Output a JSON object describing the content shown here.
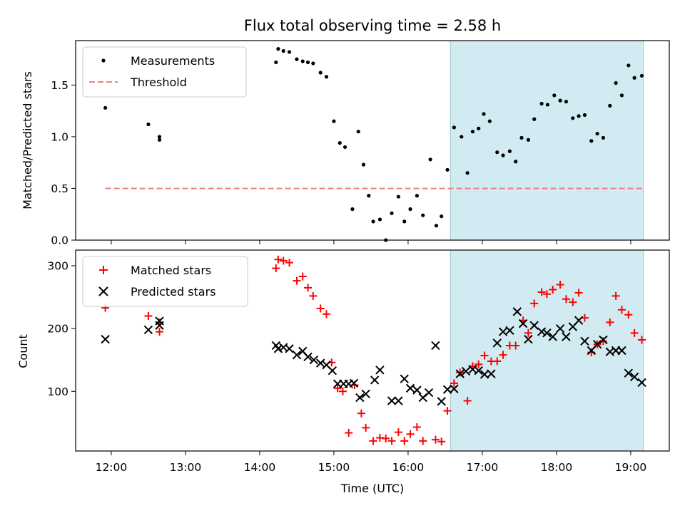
{
  "chart_data": {
    "title": "Flux total observing time = 2.58 h",
    "xlabel": "Time (UTC)",
    "x_tick_labels": [
      "12:00",
      "13:00",
      "14:00",
      "15:00",
      "16:00",
      "17:00",
      "18:00",
      "19:00"
    ],
    "x_range_hours": [
      11.52,
      19.52
    ],
    "shaded_interval_hours": [
      16.57,
      19.17
    ],
    "shade_color": "#add8e6",
    "panels": [
      {
        "type": "scatter",
        "ylabel": "Matched/Predicted stars",
        "ylim": [
          0,
          1.93
        ],
        "y_ticks": [
          0.0,
          0.5,
          1.0,
          1.5
        ],
        "y_tick_labels": [
          "0.0",
          "0.5",
          "1.0",
          "1.5"
        ],
        "legend_location": "upper left",
        "threshold": {
          "name": "Threshold",
          "value": 0.5,
          "x_range_hours": [
            11.92,
            19.18
          ],
          "color": "#f08080",
          "style": "dashed"
        },
        "series": [
          {
            "name": "Measurements",
            "color": "#000000",
            "marker": "dot",
            "points": [
              [
                11.92,
                1.28
              ],
              [
                12.5,
                1.12
              ],
              [
                12.65,
                1.0
              ],
              [
                12.65,
                0.97
              ],
              [
                14.22,
                1.72
              ],
              [
                14.25,
                1.85
              ],
              [
                14.32,
                1.83
              ],
              [
                14.4,
                1.82
              ],
              [
                14.5,
                1.75
              ],
              [
                14.58,
                1.73
              ],
              [
                14.65,
                1.72
              ],
              [
                14.72,
                1.71
              ],
              [
                14.82,
                1.62
              ],
              [
                14.9,
                1.58
              ],
              [
                15.0,
                1.15
              ],
              [
                15.08,
                0.94
              ],
              [
                15.15,
                0.9
              ],
              [
                15.25,
                0.3
              ],
              [
                15.33,
                1.05
              ],
              [
                15.4,
                0.73
              ],
              [
                15.47,
                0.43
              ],
              [
                15.53,
                0.18
              ],
              [
                15.62,
                0.2
              ],
              [
                15.7,
                0.0
              ],
              [
                15.78,
                0.26
              ],
              [
                15.87,
                0.42
              ],
              [
                15.95,
                0.18
              ],
              [
                16.03,
                0.3
              ],
              [
                16.12,
                0.43
              ],
              [
                16.2,
                0.24
              ],
              [
                16.3,
                0.78
              ],
              [
                16.38,
                0.14
              ],
              [
                16.45,
                0.23
              ],
              [
                16.53,
                0.68
              ],
              [
                16.62,
                1.09
              ],
              [
                16.72,
                1.0
              ],
              [
                16.8,
                0.65
              ],
              [
                16.87,
                1.05
              ],
              [
                16.95,
                1.08
              ],
              [
                17.02,
                1.22
              ],
              [
                17.1,
                1.15
              ],
              [
                17.2,
                0.85
              ],
              [
                17.28,
                0.82
              ],
              [
                17.37,
                0.86
              ],
              [
                17.45,
                0.76
              ],
              [
                17.53,
                0.99
              ],
              [
                17.62,
                0.97
              ],
              [
                17.7,
                1.17
              ],
              [
                17.8,
                1.32
              ],
              [
                17.88,
                1.31
              ],
              [
                17.97,
                1.4
              ],
              [
                18.05,
                1.35
              ],
              [
                18.13,
                1.34
              ],
              [
                18.22,
                1.18
              ],
              [
                18.3,
                1.2
              ],
              [
                18.38,
                1.21
              ],
              [
                18.47,
                0.96
              ],
              [
                18.55,
                1.03
              ],
              [
                18.63,
                0.99
              ],
              [
                18.72,
                1.3
              ],
              [
                18.8,
                1.52
              ],
              [
                18.88,
                1.4
              ],
              [
                18.97,
                1.69
              ],
              [
                19.05,
                1.57
              ],
              [
                19.15,
                1.59
              ]
            ]
          }
        ]
      },
      {
        "type": "scatter",
        "ylabel": "Count",
        "ylim": [
          5,
          325
        ],
        "y_ticks": [
          100,
          200,
          300
        ],
        "y_tick_labels": [
          "100",
          "200",
          "300"
        ],
        "legend_location": "upper left",
        "series": [
          {
            "name": "Matched stars",
            "color": "#ff0000",
            "marker": "plus",
            "points": [
              [
                11.92,
                233
              ],
              [
                12.5,
                220
              ],
              [
                12.65,
                195
              ],
              [
                12.65,
                210
              ],
              [
                14.22,
                296
              ],
              [
                14.25,
                310
              ],
              [
                14.32,
                308
              ],
              [
                14.4,
                305
              ],
              [
                14.5,
                276
              ],
              [
                14.58,
                283
              ],
              [
                14.65,
                265
              ],
              [
                14.72,
                252
              ],
              [
                14.82,
                232
              ],
              [
                14.9,
                223
              ],
              [
                14.97,
                146
              ],
              [
                15.05,
                105
              ],
              [
                15.12,
                100
              ],
              [
                15.2,
                34
              ],
              [
                15.28,
                110
              ],
              [
                15.37,
                65
              ],
              [
                15.43,
                42
              ],
              [
                15.53,
                21
              ],
              [
                15.62,
                26
              ],
              [
                15.7,
                25
              ],
              [
                15.78,
                21
              ],
              [
                15.87,
                35
              ],
              [
                15.95,
                21
              ],
              [
                16.03,
                32
              ],
              [
                16.12,
                43
              ],
              [
                16.2,
                21
              ],
              [
                16.37,
                23
              ],
              [
                16.45,
                20
              ],
              [
                16.53,
                69
              ],
              [
                16.62,
                113
              ],
              [
                16.7,
                130
              ],
              [
                16.8,
                85
              ],
              [
                16.87,
                140
              ],
              [
                16.95,
                143
              ],
              [
                17.03,
                157
              ],
              [
                17.12,
                148
              ],
              [
                17.2,
                148
              ],
              [
                17.28,
                158
              ],
              [
                17.37,
                173
              ],
              [
                17.45,
                173
              ],
              [
                17.55,
                213
              ],
              [
                17.62,
                193
              ],
              [
                17.7,
                240
              ],
              [
                17.8,
                258
              ],
              [
                17.87,
                255
              ],
              [
                17.95,
                262
              ],
              [
                18.05,
                270
              ],
              [
                18.13,
                247
              ],
              [
                18.22,
                242
              ],
              [
                18.3,
                257
              ],
              [
                18.38,
                217
              ],
              [
                18.47,
                162
              ],
              [
                18.55,
                175
              ],
              [
                18.63,
                180
              ],
              [
                18.72,
                210
              ],
              [
                18.8,
                252
              ],
              [
                18.88,
                230
              ],
              [
                18.97,
                222
              ],
              [
                19.05,
                193
              ],
              [
                19.15,
                182
              ]
            ]
          },
          {
            "name": "Predicted stars",
            "color": "#000000",
            "marker": "x",
            "points": [
              [
                11.92,
                183
              ],
              [
                12.5,
                198
              ],
              [
                12.65,
                205
              ],
              [
                12.65,
                212
              ],
              [
                14.22,
                173
              ],
              [
                14.25,
                168
              ],
              [
                14.32,
                170
              ],
              [
                14.4,
                168
              ],
              [
                14.5,
                158
              ],
              [
                14.58,
                164
              ],
              [
                14.65,
                155
              ],
              [
                14.73,
                150
              ],
              [
                14.82,
                145
              ],
              [
                14.9,
                142
              ],
              [
                14.98,
                133
              ],
              [
                15.05,
                112
              ],
              [
                15.13,
                112
              ],
              [
                15.2,
                112
              ],
              [
                15.27,
                113
              ],
              [
                15.35,
                90
              ],
              [
                15.43,
                96
              ],
              [
                15.55,
                118
              ],
              [
                15.62,
                134
              ],
              [
                15.78,
                85
              ],
              [
                15.87,
                85
              ],
              [
                15.95,
                120
              ],
              [
                16.03,
                105
              ],
              [
                16.12,
                102
              ],
              [
                16.2,
                90
              ],
              [
                16.28,
                98
              ],
              [
                16.37,
                173
              ],
              [
                16.45,
                84
              ],
              [
                16.53,
                103
              ],
              [
                16.62,
                104
              ],
              [
                16.7,
                128
              ],
              [
                16.78,
                132
              ],
              [
                16.87,
                135
              ],
              [
                16.95,
                133
              ],
              [
                17.03,
                127
              ],
              [
                17.12,
                128
              ],
              [
                17.2,
                177
              ],
              [
                17.28,
                195
              ],
              [
                17.37,
                197
              ],
              [
                17.47,
                227
              ],
              [
                17.55,
                208
              ],
              [
                17.62,
                183
              ],
              [
                17.7,
                205
              ],
              [
                17.8,
                195
              ],
              [
                17.87,
                193
              ],
              [
                17.95,
                187
              ],
              [
                18.05,
                200
              ],
              [
                18.13,
                187
              ],
              [
                18.22,
                203
              ],
              [
                18.3,
                213
              ],
              [
                18.38,
                180
              ],
              [
                18.47,
                165
              ],
              [
                18.55,
                175
              ],
              [
                18.63,
                182
              ],
              [
                18.72,
                163
              ],
              [
                18.8,
                165
              ],
              [
                18.88,
                165
              ],
              [
                18.97,
                129
              ],
              [
                19.05,
                123
              ],
              [
                19.15,
                114
              ]
            ]
          }
        ]
      }
    ]
  }
}
